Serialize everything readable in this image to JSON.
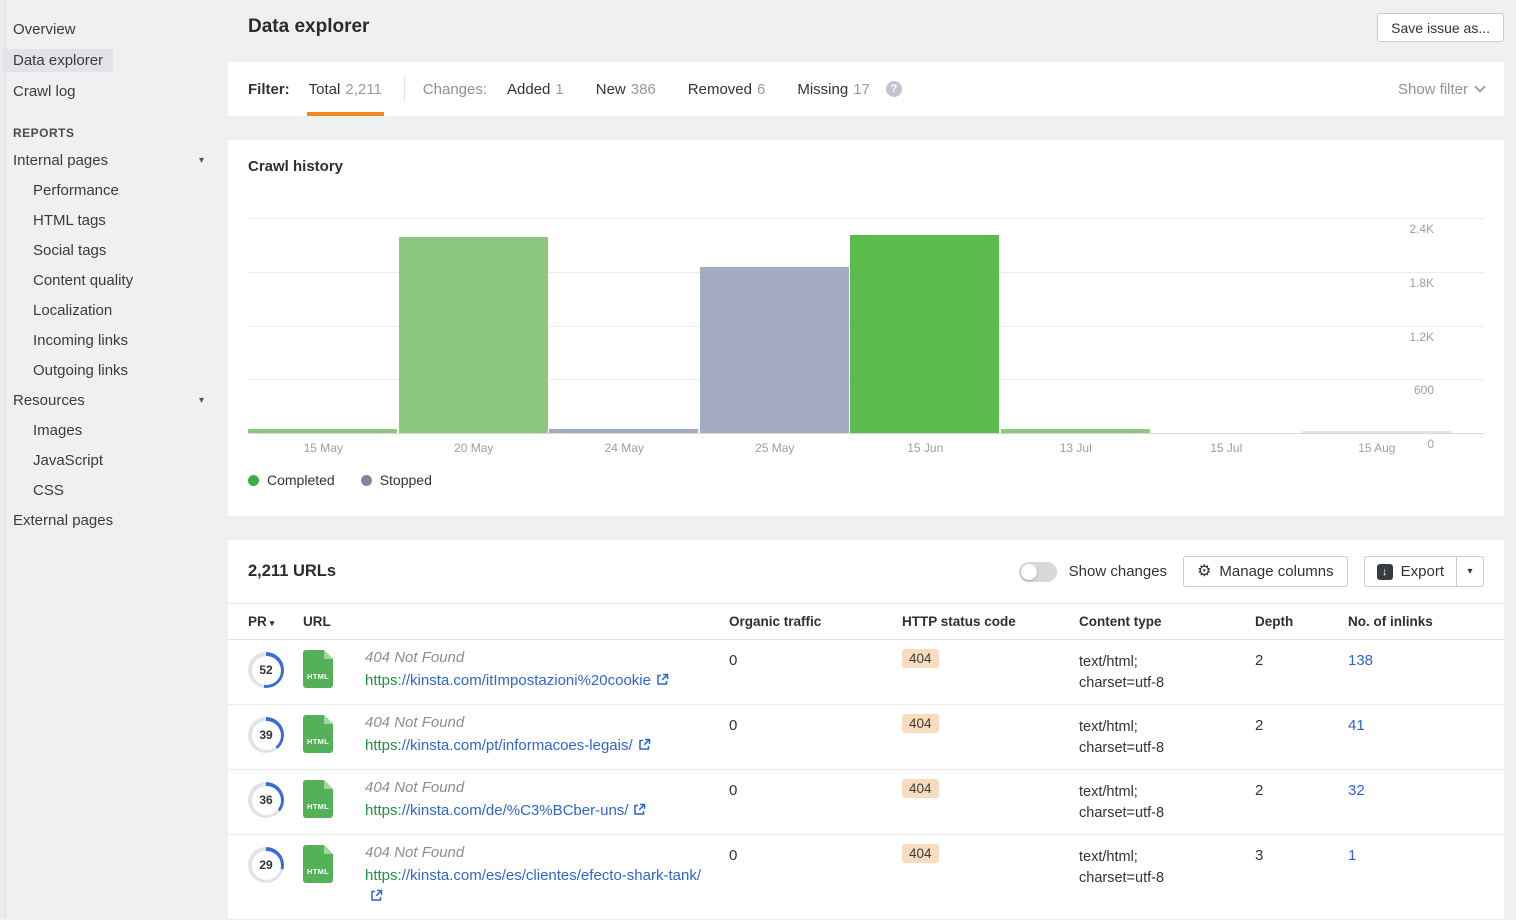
{
  "sidebar": {
    "top_items": [
      {
        "label": "Overview",
        "active": false
      },
      {
        "label": "Data explorer",
        "active": true
      },
      {
        "label": "Crawl log",
        "active": false
      }
    ],
    "reports_label": "REPORTS",
    "report_items": [
      {
        "label": "Internal pages",
        "indent": 0,
        "caret": true
      },
      {
        "label": "Performance",
        "indent": 1
      },
      {
        "label": "HTML tags",
        "indent": 1
      },
      {
        "label": "Social tags",
        "indent": 1
      },
      {
        "label": "Content quality",
        "indent": 1
      },
      {
        "label": "Localization",
        "indent": 1
      },
      {
        "label": "Incoming links",
        "indent": 1
      },
      {
        "label": "Outgoing links",
        "indent": 1
      },
      {
        "label": "Resources",
        "indent": 0,
        "caret": true
      },
      {
        "label": "Images",
        "indent": 1
      },
      {
        "label": "JavaScript",
        "indent": 1
      },
      {
        "label": "CSS",
        "indent": 1
      },
      {
        "label": "External pages",
        "indent": 0
      }
    ]
  },
  "header": {
    "title": "Data explorer",
    "save_button": "Save issue as..."
  },
  "filter_bar": {
    "filter_label": "Filter:",
    "total_tab": {
      "label": "Total",
      "count": "2,211",
      "active": true
    },
    "changes_label": "Changes:",
    "change_tabs": [
      {
        "label": "Added",
        "count": "1"
      },
      {
        "label": "New",
        "count": "386"
      },
      {
        "label": "Removed",
        "count": "6"
      },
      {
        "label": "Missing",
        "count": "17"
      }
    ],
    "help_icon": "question-mark-icon",
    "show_filter_label": "Show filter",
    "accent_color": "#f08a1d"
  },
  "chart_data": {
    "type": "bar",
    "title": "Crawl history",
    "categories": [
      "15 May",
      "20 May",
      "24 May",
      "25 May",
      "15 Jun",
      "13 Jul",
      "15 Jul",
      "15 Aug"
    ],
    "series": [
      {
        "name": "Completed",
        "values": [
          50,
          2190,
          0,
          0,
          2211,
          50,
          0,
          10
        ]
      },
      {
        "name": "Stopped",
        "values": [
          0,
          0,
          45,
          1850,
          0,
          0,
          0,
          0
        ]
      }
    ],
    "bars": [
      {
        "x": "15 May",
        "value": 50,
        "status": "completed",
        "color": "#8dc87e"
      },
      {
        "x": "20 May",
        "value": 2190,
        "status": "completed",
        "color": "#8dc87e"
      },
      {
        "x": "24 May",
        "value": 45,
        "status": "stopped",
        "color": "#a3abc1"
      },
      {
        "x": "25 May",
        "value": 1850,
        "status": "stopped",
        "color": "#a3abc1"
      },
      {
        "x": "15 Jun",
        "value": 2211,
        "status": "completed",
        "color": "#5bbb4d"
      },
      {
        "x": "13 Jul",
        "value": 50,
        "status": "completed",
        "color": "#8dc87e"
      },
      {
        "x": "15 Jul",
        "value": 0,
        "status": "completed",
        "color": "#e4e9e2"
      },
      {
        "x": "15 Aug",
        "value": 10,
        "status": "completed",
        "color": "#e2e5e1"
      }
    ],
    "ylim": [
      0,
      2400
    ],
    "yticks": [
      {
        "value": 0,
        "label": "0"
      },
      {
        "value": 600,
        "label": "600"
      },
      {
        "value": 1200,
        "label": "1.2K"
      },
      {
        "value": 1800,
        "label": "1.8K"
      },
      {
        "value": 2400,
        "label": "2.4K"
      }
    ],
    "grid": true,
    "legend_position": "bottom-left",
    "legend": [
      {
        "label": "Completed",
        "color": "#3eae4b"
      },
      {
        "label": "Stopped",
        "color": "#7a87a0"
      }
    ]
  },
  "table": {
    "title": "2,211 URLs",
    "show_changes_label": "Show changes",
    "manage_columns_label": "Manage columns",
    "export_label": "Export",
    "columns": [
      "PR",
      "URL",
      "Organic traffic",
      "HTTP status code",
      "Content type",
      "Depth",
      "No. of inlinks"
    ],
    "rows": [
      {
        "pr": 52,
        "file_type": "HTML",
        "title": "404 Not Found",
        "url_scheme": "https",
        "url_rest": "://kinsta.com/itImpostazioni%20cookie",
        "organic_traffic": "0",
        "status_code": "404",
        "content_type": "text/html; charset=utf-8",
        "depth": "2",
        "inlinks": "138"
      },
      {
        "pr": 39,
        "file_type": "HTML",
        "title": "404 Not Found",
        "url_scheme": "https",
        "url_rest": "://kinsta.com/pt/informacoes-legais/",
        "organic_traffic": "0",
        "status_code": "404",
        "content_type": "text/html; charset=utf-8",
        "depth": "2",
        "inlinks": "41"
      },
      {
        "pr": 36,
        "file_type": "HTML",
        "title": "404 Not Found",
        "url_scheme": "https",
        "url_rest": "://kinsta.com/de/%C3%BCber-uns/",
        "organic_traffic": "0",
        "status_code": "404",
        "content_type": "text/html; charset=utf-8",
        "depth": "2",
        "inlinks": "32"
      },
      {
        "pr": 29,
        "file_type": "HTML",
        "title": "404 Not Found",
        "url_scheme": "https",
        "url_rest": "://kinsta.com/es/es/clientes/efecto-shark-tank/",
        "organic_traffic": "0",
        "status_code": "404",
        "content_type": "text/html; charset=utf-8",
        "depth": "3",
        "inlinks": "1"
      }
    ],
    "status_badge_bg": "#f8dcbe",
    "pr_ring_color": "#3a6cd6",
    "html_icon_color": "#54b157",
    "link_color": "#2e66cf"
  }
}
